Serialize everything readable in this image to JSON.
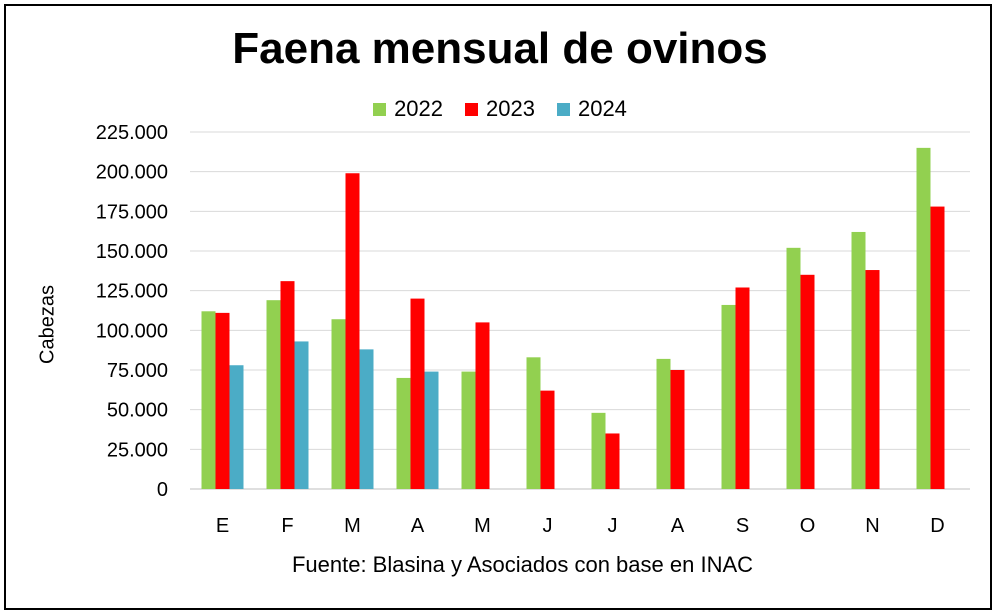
{
  "chart_data": {
    "type": "bar",
    "title": "Faena mensual de ovinos",
    "xlabel": "",
    "ylabel": "Cabezas",
    "source": "Fuente: Blasina y Asociados con base en INAC",
    "categories": [
      "E",
      "F",
      "M",
      "A",
      "M",
      "J",
      "J",
      "A",
      "S",
      "O",
      "N",
      "D"
    ],
    "ylim": [
      0,
      225000
    ],
    "yticks": [
      0,
      25000,
      50000,
      75000,
      100000,
      125000,
      150000,
      175000,
      200000,
      225000
    ],
    "ytick_labels": [
      "0",
      "25.000",
      "50.000",
      "75.000",
      "100.000",
      "125.000",
      "150.000",
      "175.000",
      "200.000",
      "225.000"
    ],
    "grid": true,
    "legend_position": "top-center",
    "series": [
      {
        "name": "2022",
        "color": "#92d050",
        "values": [
          112000,
          119000,
          107000,
          70000,
          74000,
          83000,
          48000,
          82000,
          116000,
          152000,
          162000,
          215000
        ]
      },
      {
        "name": "2023",
        "color": "#ff0000",
        "values": [
          111000,
          131000,
          199000,
          120000,
          105000,
          62000,
          35000,
          75000,
          127000,
          135000,
          138000,
          178000
        ]
      },
      {
        "name": "2024",
        "color": "#4bacc6",
        "values": [
          78000,
          93000,
          88000,
          74000,
          null,
          null,
          null,
          null,
          null,
          null,
          null,
          null
        ]
      }
    ]
  }
}
